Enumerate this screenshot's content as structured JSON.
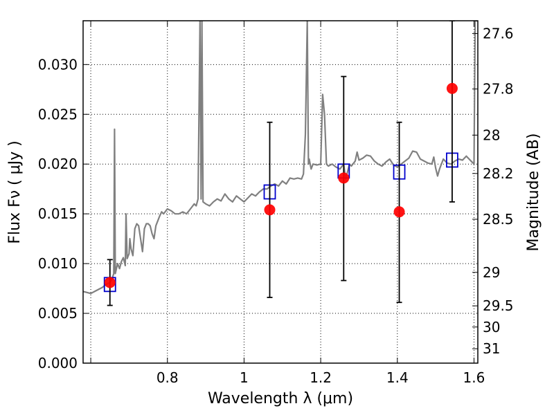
{
  "chart_data": {
    "type": "scatter",
    "title": "",
    "xlabel": "Wavelength  λ (μm)",
    "ylabel": "Flux  Fν  ( μJy )",
    "ylabel_right": "Magnitude (AB)",
    "xlim": [
      0.58,
      1.61
    ],
    "ylim": [
      0.0,
      0.0344
    ],
    "grid": true,
    "grid_style": "dotted",
    "x_ticks": [
      {
        "value": 0.6,
        "label": ""
      },
      {
        "value": 0.8,
        "label": "0.8"
      },
      {
        "value": 1.0,
        "label": "1"
      },
      {
        "value": 1.2,
        "label": "1.2"
      },
      {
        "value": 1.4,
        "label": "1.4"
      },
      {
        "value": 1.6,
        "label": "1.6"
      }
    ],
    "y_ticks": [
      {
        "value": 0.0,
        "label": "0.000"
      },
      {
        "value": 0.005,
        "label": "0.005"
      },
      {
        "value": 0.01,
        "label": "0.010"
      },
      {
        "value": 0.015,
        "label": "0.015"
      },
      {
        "value": 0.02,
        "label": "0.020"
      },
      {
        "value": 0.025,
        "label": "0.025"
      },
      {
        "value": 0.03,
        "label": "0.030"
      }
    ],
    "right_ticks": [
      {
        "mag": 27.6,
        "label": "27.6"
      },
      {
        "mag": 27.8,
        "label": "27.8"
      },
      {
        "mag": 28.0,
        "label": "28"
      },
      {
        "mag": 28.2,
        "label": "28.2"
      },
      {
        "mag": 28.5,
        "label": "28.5"
      },
      {
        "mag": 29.0,
        "label": "29"
      },
      {
        "mag": 29.5,
        "label": "29.5"
      },
      {
        "mag": 30.0,
        "label": "30"
      },
      {
        "mag": 31.0,
        "label": "31"
      }
    ],
    "series": [
      {
        "kind": "line",
        "color": "#808080",
        "points": [
          [
            0.58,
            0.0072
          ],
          [
            0.59,
            0.0071
          ],
          [
            0.6,
            0.007
          ],
          [
            0.61,
            0.0072
          ],
          [
            0.62,
            0.0074
          ],
          [
            0.63,
            0.0076
          ],
          [
            0.64,
            0.0079
          ],
          [
            0.65,
            0.0081
          ],
          [
            0.655,
            0.0084
          ],
          [
            0.66,
            0.009
          ],
          [
            0.662,
            0.0235
          ],
          [
            0.664,
            0.009
          ],
          [
            0.67,
            0.01
          ],
          [
            0.675,
            0.0095
          ],
          [
            0.68,
            0.0102
          ],
          [
            0.685,
            0.0106
          ],
          [
            0.69,
            0.0098
          ],
          [
            0.692,
            0.015
          ],
          [
            0.695,
            0.0105
          ],
          [
            0.7,
            0.011
          ],
          [
            0.702,
            0.0125
          ],
          [
            0.705,
            0.0115
          ],
          [
            0.71,
            0.0108
          ],
          [
            0.715,
            0.0135
          ],
          [
            0.72,
            0.014
          ],
          [
            0.725,
            0.0138
          ],
          [
            0.73,
            0.0125
          ],
          [
            0.735,
            0.0112
          ],
          [
            0.74,
            0.0135
          ],
          [
            0.745,
            0.014
          ],
          [
            0.75,
            0.014
          ],
          [
            0.755,
            0.0138
          ],
          [
            0.76,
            0.013
          ],
          [
            0.765,
            0.0125
          ],
          [
            0.77,
            0.0138
          ],
          [
            0.775,
            0.0143
          ],
          [
            0.78,
            0.0148
          ],
          [
            0.785,
            0.0152
          ],
          [
            0.79,
            0.015
          ],
          [
            0.8,
            0.0155
          ],
          [
            0.81,
            0.0153
          ],
          [
            0.82,
            0.015
          ],
          [
            0.83,
            0.015
          ],
          [
            0.84,
            0.0152
          ],
          [
            0.85,
            0.015
          ],
          [
            0.86,
            0.0155
          ],
          [
            0.87,
            0.016
          ],
          [
            0.875,
            0.0158
          ],
          [
            0.88,
            0.0165
          ],
          [
            0.885,
            0.0344
          ],
          [
            0.888,
            0.0165
          ],
          [
            0.89,
            0.0344
          ],
          [
            0.893,
            0.0162
          ],
          [
            0.9,
            0.016
          ],
          [
            0.91,
            0.0158
          ],
          [
            0.92,
            0.0162
          ],
          [
            0.93,
            0.0165
          ],
          [
            0.94,
            0.0163
          ],
          [
            0.95,
            0.017
          ],
          [
            0.96,
            0.0165
          ],
          [
            0.97,
            0.0162
          ],
          [
            0.98,
            0.0168
          ],
          [
            0.99,
            0.0165
          ],
          [
            1.0,
            0.0162
          ],
          [
            1.01,
            0.0166
          ],
          [
            1.02,
            0.017
          ],
          [
            1.03,
            0.0168
          ],
          [
            1.04,
            0.0172
          ],
          [
            1.05,
            0.0175
          ],
          [
            1.06,
            0.0175
          ],
          [
            1.07,
            0.0178
          ],
          [
            1.08,
            0.018
          ],
          [
            1.09,
            0.0178
          ],
          [
            1.1,
            0.0183
          ],
          [
            1.11,
            0.018
          ],
          [
            1.12,
            0.0186
          ],
          [
            1.13,
            0.0185
          ],
          [
            1.14,
            0.0186
          ],
          [
            1.15,
            0.0185
          ],
          [
            1.155,
            0.019
          ],
          [
            1.16,
            0.023
          ],
          [
            1.165,
            0.0344
          ],
          [
            1.168,
            0.02
          ],
          [
            1.17,
            0.0205
          ],
          [
            1.175,
            0.0195
          ],
          [
            1.18,
            0.02
          ],
          [
            1.19,
            0.0199
          ],
          [
            1.2,
            0.02
          ],
          [
            1.205,
            0.027
          ],
          [
            1.21,
            0.025
          ],
          [
            1.215,
            0.02
          ],
          [
            1.22,
            0.0198
          ],
          [
            1.23,
            0.02
          ],
          [
            1.24,
            0.0197
          ],
          [
            1.25,
            0.0195
          ],
          [
            1.26,
            0.02
          ],
          [
            1.265,
            0.0185
          ],
          [
            1.27,
            0.0192
          ],
          [
            1.275,
            0.02
          ],
          [
            1.28,
            0.0198
          ],
          [
            1.29,
            0.0203
          ],
          [
            1.295,
            0.0212
          ],
          [
            1.3,
            0.0204
          ],
          [
            1.31,
            0.0206
          ],
          [
            1.32,
            0.0209
          ],
          [
            1.33,
            0.0208
          ],
          [
            1.34,
            0.0203
          ],
          [
            1.35,
            0.02
          ],
          [
            1.36,
            0.0198
          ],
          [
            1.37,
            0.0202
          ],
          [
            1.38,
            0.0205
          ],
          [
            1.39,
            0.0199
          ],
          [
            1.4,
            0.0197
          ],
          [
            1.41,
            0.02
          ],
          [
            1.42,
            0.0203
          ],
          [
            1.43,
            0.0206
          ],
          [
            1.44,
            0.0213
          ],
          [
            1.45,
            0.0212
          ],
          [
            1.46,
            0.0205
          ],
          [
            1.47,
            0.0203
          ],
          [
            1.48,
            0.0201
          ],
          [
            1.49,
            0.02
          ],
          [
            1.495,
            0.0207
          ],
          [
            1.5,
            0.0196
          ],
          [
            1.505,
            0.0188
          ],
          [
            1.51,
            0.0195
          ],
          [
            1.52,
            0.0205
          ],
          [
            1.53,
            0.0201
          ],
          [
            1.54,
            0.02
          ],
          [
            1.55,
            0.0203
          ],
          [
            1.56,
            0.0205
          ],
          [
            1.57,
            0.0204
          ],
          [
            1.58,
            0.0208
          ],
          [
            1.59,
            0.0204
          ],
          [
            1.6,
            0.02
          ],
          [
            1.603,
            0.0344
          ],
          [
            1.61,
            0.0344
          ]
        ]
      },
      {
        "kind": "markers",
        "marker": "square",
        "color": "#0000cc",
        "points": [
          [
            0.65,
            0.0079
          ],
          [
            1.067,
            0.0172
          ],
          [
            1.26,
            0.0193
          ],
          [
            1.405,
            0.0192
          ],
          [
            1.543,
            0.0204
          ]
        ]
      },
      {
        "kind": "markers",
        "marker": "circle",
        "color": "#ff0000",
        "points": [
          {
            "x": 0.65,
            "y": 0.0081,
            "err": [
              0.0058,
              0.0104
            ]
          },
          {
            "x": 1.067,
            "y": 0.0154,
            "err": [
              0.0066,
              0.0242
            ]
          },
          {
            "x": 1.26,
            "y": 0.0186,
            "err": [
              0.0083,
              0.0288
            ]
          },
          {
            "x": 1.405,
            "y": 0.0152,
            "err": [
              0.0061,
              0.0242
            ]
          },
          {
            "x": 1.543,
            "y": 0.0276,
            "err": [
              0.0162,
              0.0344
            ]
          }
        ]
      }
    ]
  }
}
